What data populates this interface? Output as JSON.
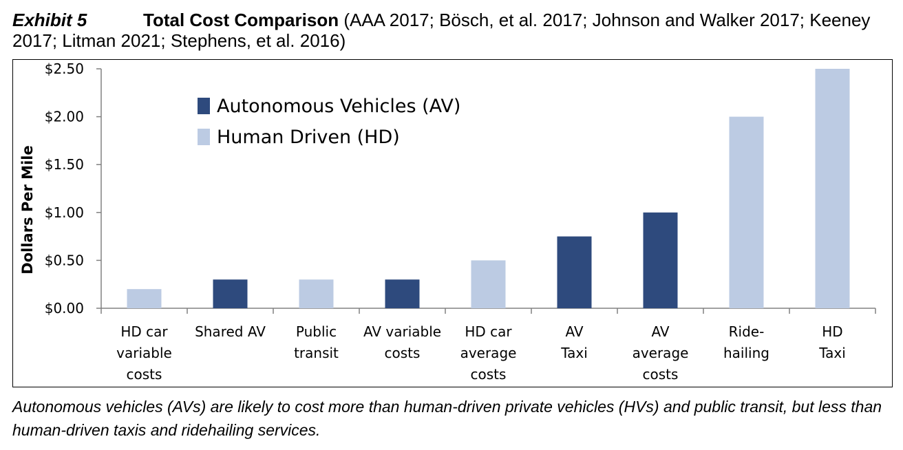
{
  "header": {
    "exhibit": "Exhibit 5",
    "title": "Total Cost Comparison",
    "sources": " (AAA 2017; Bösch, et al. 2017; Johnson and Walker 2017; Keeney 2017; Litman 2021; Stephens, et al. 2016)"
  },
  "caption": "Autonomous vehicles (AVs) are likely to cost more than human-driven private vehicles (HVs) and public transit, but less than human-driven taxis and ridehailing services.",
  "colors": {
    "av": "#2e4a7d",
    "hd": "#bccbe3"
  },
  "chart_data": {
    "type": "bar",
    "ylabel": "Dollars Per Mile",
    "ylim": [
      0,
      2.5
    ],
    "yticks": [
      "$0.00",
      "$0.50",
      "$1.00",
      "$1.50",
      "$2.00",
      "$2.50"
    ],
    "ytick_values": [
      0,
      0.5,
      1.0,
      1.5,
      2.0,
      2.5
    ],
    "legend": [
      {
        "key": "av",
        "label": "Autonomous Vehicles (AV)"
      },
      {
        "key": "hd",
        "label": "Human Driven (HD)"
      }
    ],
    "legend_position": "top-left",
    "grid": false,
    "categories": [
      {
        "label": [
          "HD car",
          "variable",
          "costs"
        ],
        "value": 0.2,
        "group": "hd"
      },
      {
        "label": [
          "Shared AV"
        ],
        "value": 0.3,
        "group": "av"
      },
      {
        "label": [
          "Public",
          "transit"
        ],
        "value": 0.3,
        "group": "hd"
      },
      {
        "label": [
          "AV variable",
          "costs"
        ],
        "value": 0.3,
        "group": "av"
      },
      {
        "label": [
          "HD car",
          "average",
          "costs"
        ],
        "value": 0.5,
        "group": "hd"
      },
      {
        "label": [
          "AV",
          "Taxi"
        ],
        "value": 0.75,
        "group": "av"
      },
      {
        "label": [
          "AV",
          "average",
          "costs"
        ],
        "value": 1.0,
        "group": "av"
      },
      {
        "label": [
          "Ride-",
          "hailing"
        ],
        "value": 2.0,
        "group": "hd"
      },
      {
        "label": [
          "HD",
          "Taxi"
        ],
        "value": 2.5,
        "group": "hd"
      }
    ]
  }
}
